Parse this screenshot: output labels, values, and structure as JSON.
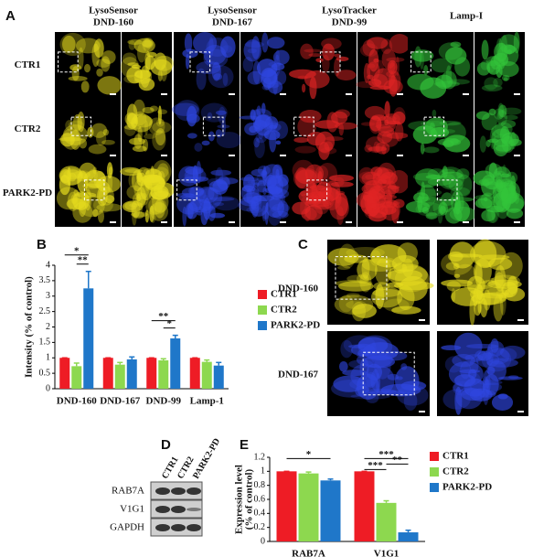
{
  "panels": {
    "labels": [
      "A",
      "B",
      "C",
      "D",
      "E"
    ]
  },
  "panel_a": {
    "columns": [
      [
        "LysoSensor",
        "DND-160"
      ],
      [
        "LysoSensor",
        "DND-167"
      ],
      [
        "LysoTracker",
        "DND-99"
      ],
      [
        "Lamp-I"
      ]
    ],
    "rows": [
      "CTR1",
      "CTR2",
      "PARK2-PD"
    ]
  },
  "panel_c": {
    "rows": [
      "DND-160",
      "DND-167"
    ]
  },
  "panel_d": {
    "columns": [
      "CTR1",
      "CTR2",
      "PARK2-PD"
    ],
    "rows": [
      "RAB7A",
      "V1G1",
      "GAPDH"
    ]
  },
  "chart_data": [
    {
      "type": "bar",
      "ylabel": "Intensity (% of control)",
      "categories": [
        "DND-160",
        "DND-167",
        "DND-99",
        "Lamp-1"
      ],
      "series": [
        {
          "name": "CTR1",
          "color": "#ee1c25",
          "values": [
            1,
            1,
            1,
            1
          ],
          "errors": [
            0,
            0,
            0,
            0
          ]
        },
        {
          "name": "CTR2",
          "color": "#8dd84f",
          "values": [
            0.73,
            0.78,
            0.92,
            0.87
          ],
          "errors": [
            0.1,
            0.07,
            0.05,
            0.06
          ]
        },
        {
          "name": "PARK2-PD",
          "color": "#1f77c9",
          "values": [
            3.25,
            0.95,
            1.63,
            0.75
          ],
          "errors": [
            0.55,
            0.08,
            0.1,
            0.1
          ]
        }
      ],
      "ylim": [
        0,
        4
      ],
      "yticks": [
        0,
        0.5,
        1,
        1.5,
        2,
        2.5,
        3,
        3.5,
        4
      ],
      "annotations": [
        "*",
        "**",
        "**",
        "*"
      ]
    },
    {
      "type": "bar",
      "ylabel": [
        "Expression level",
        "(% of control)"
      ],
      "categories": [
        "RAB7A",
        "V1G1"
      ],
      "series": [
        {
          "name": "CTR1",
          "color": "#ee1c25",
          "values": [
            1,
            1
          ],
          "errors": [
            0,
            0
          ]
        },
        {
          "name": "CTR2",
          "color": "#8dd84f",
          "values": [
            0.97,
            0.55
          ],
          "errors": [
            0.02,
            0.03
          ]
        },
        {
          "name": "PARK2-PD",
          "color": "#1f77c9",
          "values": [
            0.87,
            0.13
          ],
          "errors": [
            0.02,
            0.03
          ]
        }
      ],
      "ylim": [
        0,
        1.2
      ],
      "yticks": [
        0,
        0.2,
        0.4,
        0.6,
        0.8,
        1,
        1.2
      ],
      "annotations": [
        "*",
        "***",
        "***",
        "**"
      ]
    }
  ]
}
